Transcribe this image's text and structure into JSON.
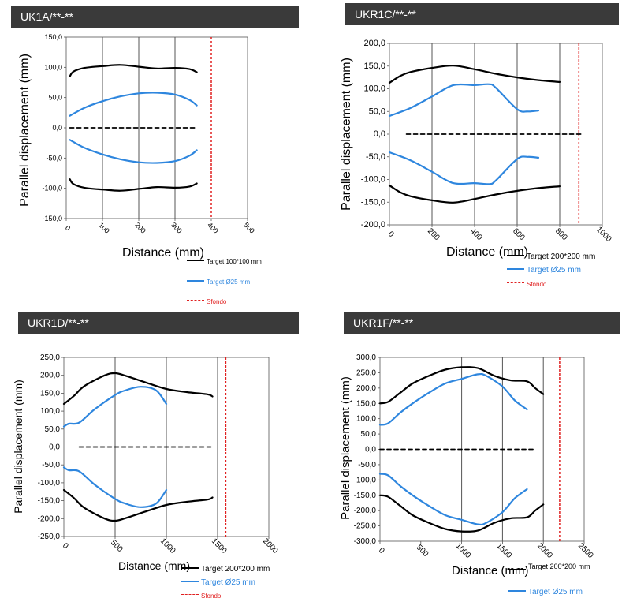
{
  "charts": [
    {
      "title": "UK1A/**-**",
      "type": "line",
      "xlabel": "Distance (mm)",
      "ylabel": "Parallel displacement (mm)",
      "xlim": [
        0,
        500
      ],
      "ylim": [
        -150,
        150
      ],
      "xticks": [
        "0",
        "100",
        "200",
        "300",
        "400",
        "500"
      ],
      "yticks": [
        "150,0",
        "100,0",
        "50,0",
        "0,0",
        "-50,0",
        "-100,0",
        "-150,0"
      ],
      "vlines": [
        100,
        200,
        300
      ],
      "background_line": 400,
      "legend": [
        {
          "label": "Target 100*100 mm",
          "color": "#000000",
          "style": "solid"
        },
        {
          "label": "Target Ø25 mm",
          "color": "#2e86de",
          "style": "solid"
        },
        {
          "label": "Sfondo",
          "color": "#e02020",
          "style": "dashed"
        }
      ],
      "series": [
        {
          "name": "Target 100*100 mm",
          "color": "#000000",
          "points": [
            [
              10,
              85
            ],
            [
              20,
              93
            ],
            [
              50,
              99
            ],
            [
              100,
              102
            ],
            [
              150,
              104
            ],
            [
              200,
              101
            ],
            [
              250,
              98
            ],
            [
              300,
              99
            ],
            [
              340,
              97
            ],
            [
              360,
              92
            ]
          ]
        },
        {
          "color": "#000000",
          "points": [
            [
              10,
              -85
            ],
            [
              20,
              -93
            ],
            [
              50,
              -99
            ],
            [
              100,
              -102
            ],
            [
              150,
              -104
            ],
            [
              200,
              -101
            ],
            [
              250,
              -98
            ],
            [
              300,
              -99
            ],
            [
              340,
              -97
            ],
            [
              360,
              -92
            ]
          ]
        },
        {
          "name": "Target Ø25 mm",
          "color": "#2e86de",
          "points": [
            [
              10,
              20
            ],
            [
              50,
              33
            ],
            [
              100,
              44
            ],
            [
              150,
              52
            ],
            [
              200,
              57
            ],
            [
              250,
              58
            ],
            [
              300,
              55
            ],
            [
              340,
              46
            ],
            [
              360,
              37
            ]
          ]
        },
        {
          "color": "#2e86de",
          "points": [
            [
              10,
              -20
            ],
            [
              50,
              -33
            ],
            [
              100,
              -44
            ],
            [
              150,
              -52
            ],
            [
              200,
              -57
            ],
            [
              250,
              -58
            ],
            [
              300,
              -55
            ],
            [
              340,
              -46
            ],
            [
              360,
              -37
            ]
          ]
        },
        {
          "color": "#000000",
          "dashed": true,
          "points": [
            [
              10,
              0
            ],
            [
              360,
              0
            ]
          ]
        }
      ]
    },
    {
      "title": "UKR1C/**-**",
      "type": "line",
      "xlabel": "Distance (mm)",
      "ylabel": "Parallel displacement (mm)",
      "xlim": [
        0,
        1000
      ],
      "ylim": [
        -200,
        200
      ],
      "xticks": [
        "0",
        "200",
        "400",
        "600",
        "800",
        "1000"
      ],
      "yticks": [
        "200,0",
        "150,0",
        "100,0",
        "50,0",
        "0,0",
        "-50,0",
        "-100,0",
        "-150,0",
        "-200,0"
      ],
      "vlines": [
        200,
        400,
        600,
        800
      ],
      "background_line": 890,
      "legend": [
        {
          "label": "Target 200*200 mm",
          "color": "#000000",
          "style": "solid"
        },
        {
          "label": "Target Ø25 mm",
          "color": "#2e86de",
          "style": "solid"
        },
        {
          "label": "Sfondo",
          "color": "#e02020",
          "style": "dashed"
        }
      ],
      "series": [
        {
          "name": "Target 200*200 mm",
          "color": "#000000",
          "points": [
            [
              0,
              113
            ],
            [
              50,
              128
            ],
            [
              100,
              137
            ],
            [
              200,
              146
            ],
            [
              300,
              151
            ],
            [
              400,
              143
            ],
            [
              500,
              133
            ],
            [
              600,
              125
            ],
            [
              700,
              119
            ],
            [
              800,
              115
            ]
          ]
        },
        {
          "color": "#000000",
          "points": [
            [
              0,
              -113
            ],
            [
              50,
              -128
            ],
            [
              100,
              -137
            ],
            [
              200,
              -146
            ],
            [
              300,
              -151
            ],
            [
              400,
              -143
            ],
            [
              500,
              -133
            ],
            [
              600,
              -125
            ],
            [
              700,
              -119
            ],
            [
              800,
              -115
            ]
          ]
        },
        {
          "name": "Target Ø25 mm",
          "color": "#2e86de",
          "points": [
            [
              0,
              40
            ],
            [
              100,
              58
            ],
            [
              200,
              83
            ],
            [
              300,
              108
            ],
            [
              400,
              108
            ],
            [
              470,
              110
            ],
            [
              500,
              102
            ],
            [
              600,
              55
            ],
            [
              650,
              50
            ],
            [
              700,
              52
            ]
          ]
        },
        {
          "color": "#2e86de",
          "points": [
            [
              0,
              -40
            ],
            [
              100,
              -58
            ],
            [
              200,
              -83
            ],
            [
              300,
              -108
            ],
            [
              400,
              -108
            ],
            [
              470,
              -110
            ],
            [
              500,
              -102
            ],
            [
              600,
              -55
            ],
            [
              650,
              -50
            ],
            [
              700,
              -52
            ]
          ]
        },
        {
          "color": "#000000",
          "dashed": true,
          "points": [
            [
              80,
              0
            ],
            [
              900,
              0
            ]
          ]
        }
      ]
    },
    {
      "title": "UKR1D/**-**",
      "type": "line",
      "xlabel": "Distance (mm)",
      "ylabel": "Parallel displacement (mm)",
      "xlim": [
        0,
        2000
      ],
      "ylim": [
        -250,
        250
      ],
      "xticks": [
        "0",
        "500",
        "1000",
        "1500",
        "2000"
      ],
      "yticks": [
        "250,0",
        "200,0",
        "150,0",
        "100,0",
        "50,0",
        "0,0",
        "-50,0",
        "-100,0",
        "-150,0",
        "-200,0",
        "-250,0"
      ],
      "vlines": [
        500,
        1000,
        1500
      ],
      "background_line": 1580,
      "legend": [
        {
          "label": "Target 200*200 mm",
          "color": "#000000",
          "style": "solid"
        },
        {
          "label": "Target Ø25 mm",
          "color": "#2e86de",
          "style": "solid"
        },
        {
          "label": "Sfondo",
          "color": "#e02020",
          "style": "dashed"
        }
      ],
      "series": [
        {
          "name": "Target 200*200 mm",
          "color": "#000000",
          "points": [
            [
              0,
              120
            ],
            [
              100,
              143
            ],
            [
              200,
              170
            ],
            [
              400,
              200
            ],
            [
              500,
              206
            ],
            [
              600,
              199
            ],
            [
              800,
              180
            ],
            [
              1000,
              162
            ],
            [
              1200,
              153
            ],
            [
              1400,
              147
            ],
            [
              1450,
              141
            ]
          ]
        },
        {
          "color": "#000000",
          "points": [
            [
              0,
              -120
            ],
            [
              100,
              -143
            ],
            [
              200,
              -170
            ],
            [
              400,
              -200
            ],
            [
              500,
              -206
            ],
            [
              600,
              -199
            ],
            [
              800,
              -180
            ],
            [
              1000,
              -162
            ],
            [
              1200,
              -153
            ],
            [
              1400,
              -147
            ],
            [
              1450,
              -141
            ]
          ]
        },
        {
          "name": "Target Ø25 mm",
          "color": "#2e86de",
          "points": [
            [
              0,
              57
            ],
            [
              50,
              65
            ],
            [
              150,
              68
            ],
            [
              300,
              105
            ],
            [
              500,
              145
            ],
            [
              600,
              158
            ],
            [
              750,
              168
            ],
            [
              900,
              158
            ],
            [
              1000,
              120
            ]
          ]
        },
        {
          "color": "#2e86de",
          "points": [
            [
              0,
              -57
            ],
            [
              50,
              -65
            ],
            [
              150,
              -68
            ],
            [
              300,
              -105
            ],
            [
              500,
              -145
            ],
            [
              600,
              -158
            ],
            [
              750,
              -168
            ],
            [
              900,
              -158
            ],
            [
              1000,
              -120
            ]
          ]
        },
        {
          "color": "#000000",
          "dashed": true,
          "points": [
            [
              150,
              0
            ],
            [
              1450,
              0
            ]
          ]
        }
      ]
    },
    {
      "title": "UKR1F/**-**",
      "type": "line",
      "xlabel": "Distance (mm)",
      "ylabel": "Parallel displacement (mm)",
      "xlim": [
        0,
        2500
      ],
      "ylim": [
        -300,
        300
      ],
      "xticks": [
        "0",
        "500",
        "1000",
        "1500",
        "2000",
        "2500"
      ],
      "yticks": [
        "300,0",
        "250,0",
        "200,0",
        "150,0",
        "100,0",
        "50,0",
        "0,0",
        "-50,0",
        "-100,0",
        "-150,0",
        "-200,0",
        "-250,0",
        "-300,0"
      ],
      "vlines": [
        1000,
        1500,
        2000
      ],
      "background_line": 2200,
      "legend": [
        {
          "label": "Target 200*200 mm",
          "color": "#000000",
          "style": "solid"
        },
        {
          "label": "Target Ø25 mm",
          "color": "#2e86de",
          "style": "solid"
        }
      ],
      "series": [
        {
          "name": "Target 200*200 mm",
          "color": "#000000",
          "points": [
            [
              0,
              150
            ],
            [
              100,
              155
            ],
            [
              250,
              185
            ],
            [
              400,
              215
            ],
            [
              600,
              240
            ],
            [
              800,
              260
            ],
            [
              1000,
              268
            ],
            [
              1200,
              265
            ],
            [
              1400,
              240
            ],
            [
              1600,
              225
            ],
            [
              1800,
              222
            ],
            [
              1900,
              200
            ],
            [
              2000,
              180
            ]
          ]
        },
        {
          "color": "#000000",
          "points": [
            [
              0,
              -150
            ],
            [
              100,
              -155
            ],
            [
              250,
              -185
            ],
            [
              400,
              -215
            ],
            [
              600,
              -240
            ],
            [
              800,
              -260
            ],
            [
              1000,
              -268
            ],
            [
              1200,
              -265
            ],
            [
              1400,
              -240
            ],
            [
              1600,
              -225
            ],
            [
              1800,
              -222
            ],
            [
              1900,
              -200
            ],
            [
              2000,
              -180
            ]
          ]
        },
        {
          "name": "Target Ø25 mm",
          "color": "#2e86de",
          "points": [
            [
              0,
              80
            ],
            [
              100,
              85
            ],
            [
              250,
              120
            ],
            [
              400,
              150
            ],
            [
              600,
              185
            ],
            [
              800,
              215
            ],
            [
              1000,
              230
            ],
            [
              1200,
              245
            ],
            [
              1300,
              240
            ],
            [
              1500,
              205
            ],
            [
              1650,
              160
            ],
            [
              1800,
              130
            ]
          ]
        },
        {
          "color": "#2e86de",
          "points": [
            [
              0,
              -80
            ],
            [
              100,
              -85
            ],
            [
              250,
              -120
            ],
            [
              400,
              -150
            ],
            [
              600,
              -185
            ],
            [
              800,
              -215
            ],
            [
              1000,
              -230
            ],
            [
              1200,
              -245
            ],
            [
              1300,
              -240
            ],
            [
              1500,
              -205
            ],
            [
              1650,
              -160
            ],
            [
              1800,
              -130
            ]
          ]
        },
        {
          "color": "#000000",
          "dashed": true,
          "points": [
            [
              0,
              0
            ],
            [
              1900,
              0
            ]
          ]
        }
      ]
    }
  ]
}
